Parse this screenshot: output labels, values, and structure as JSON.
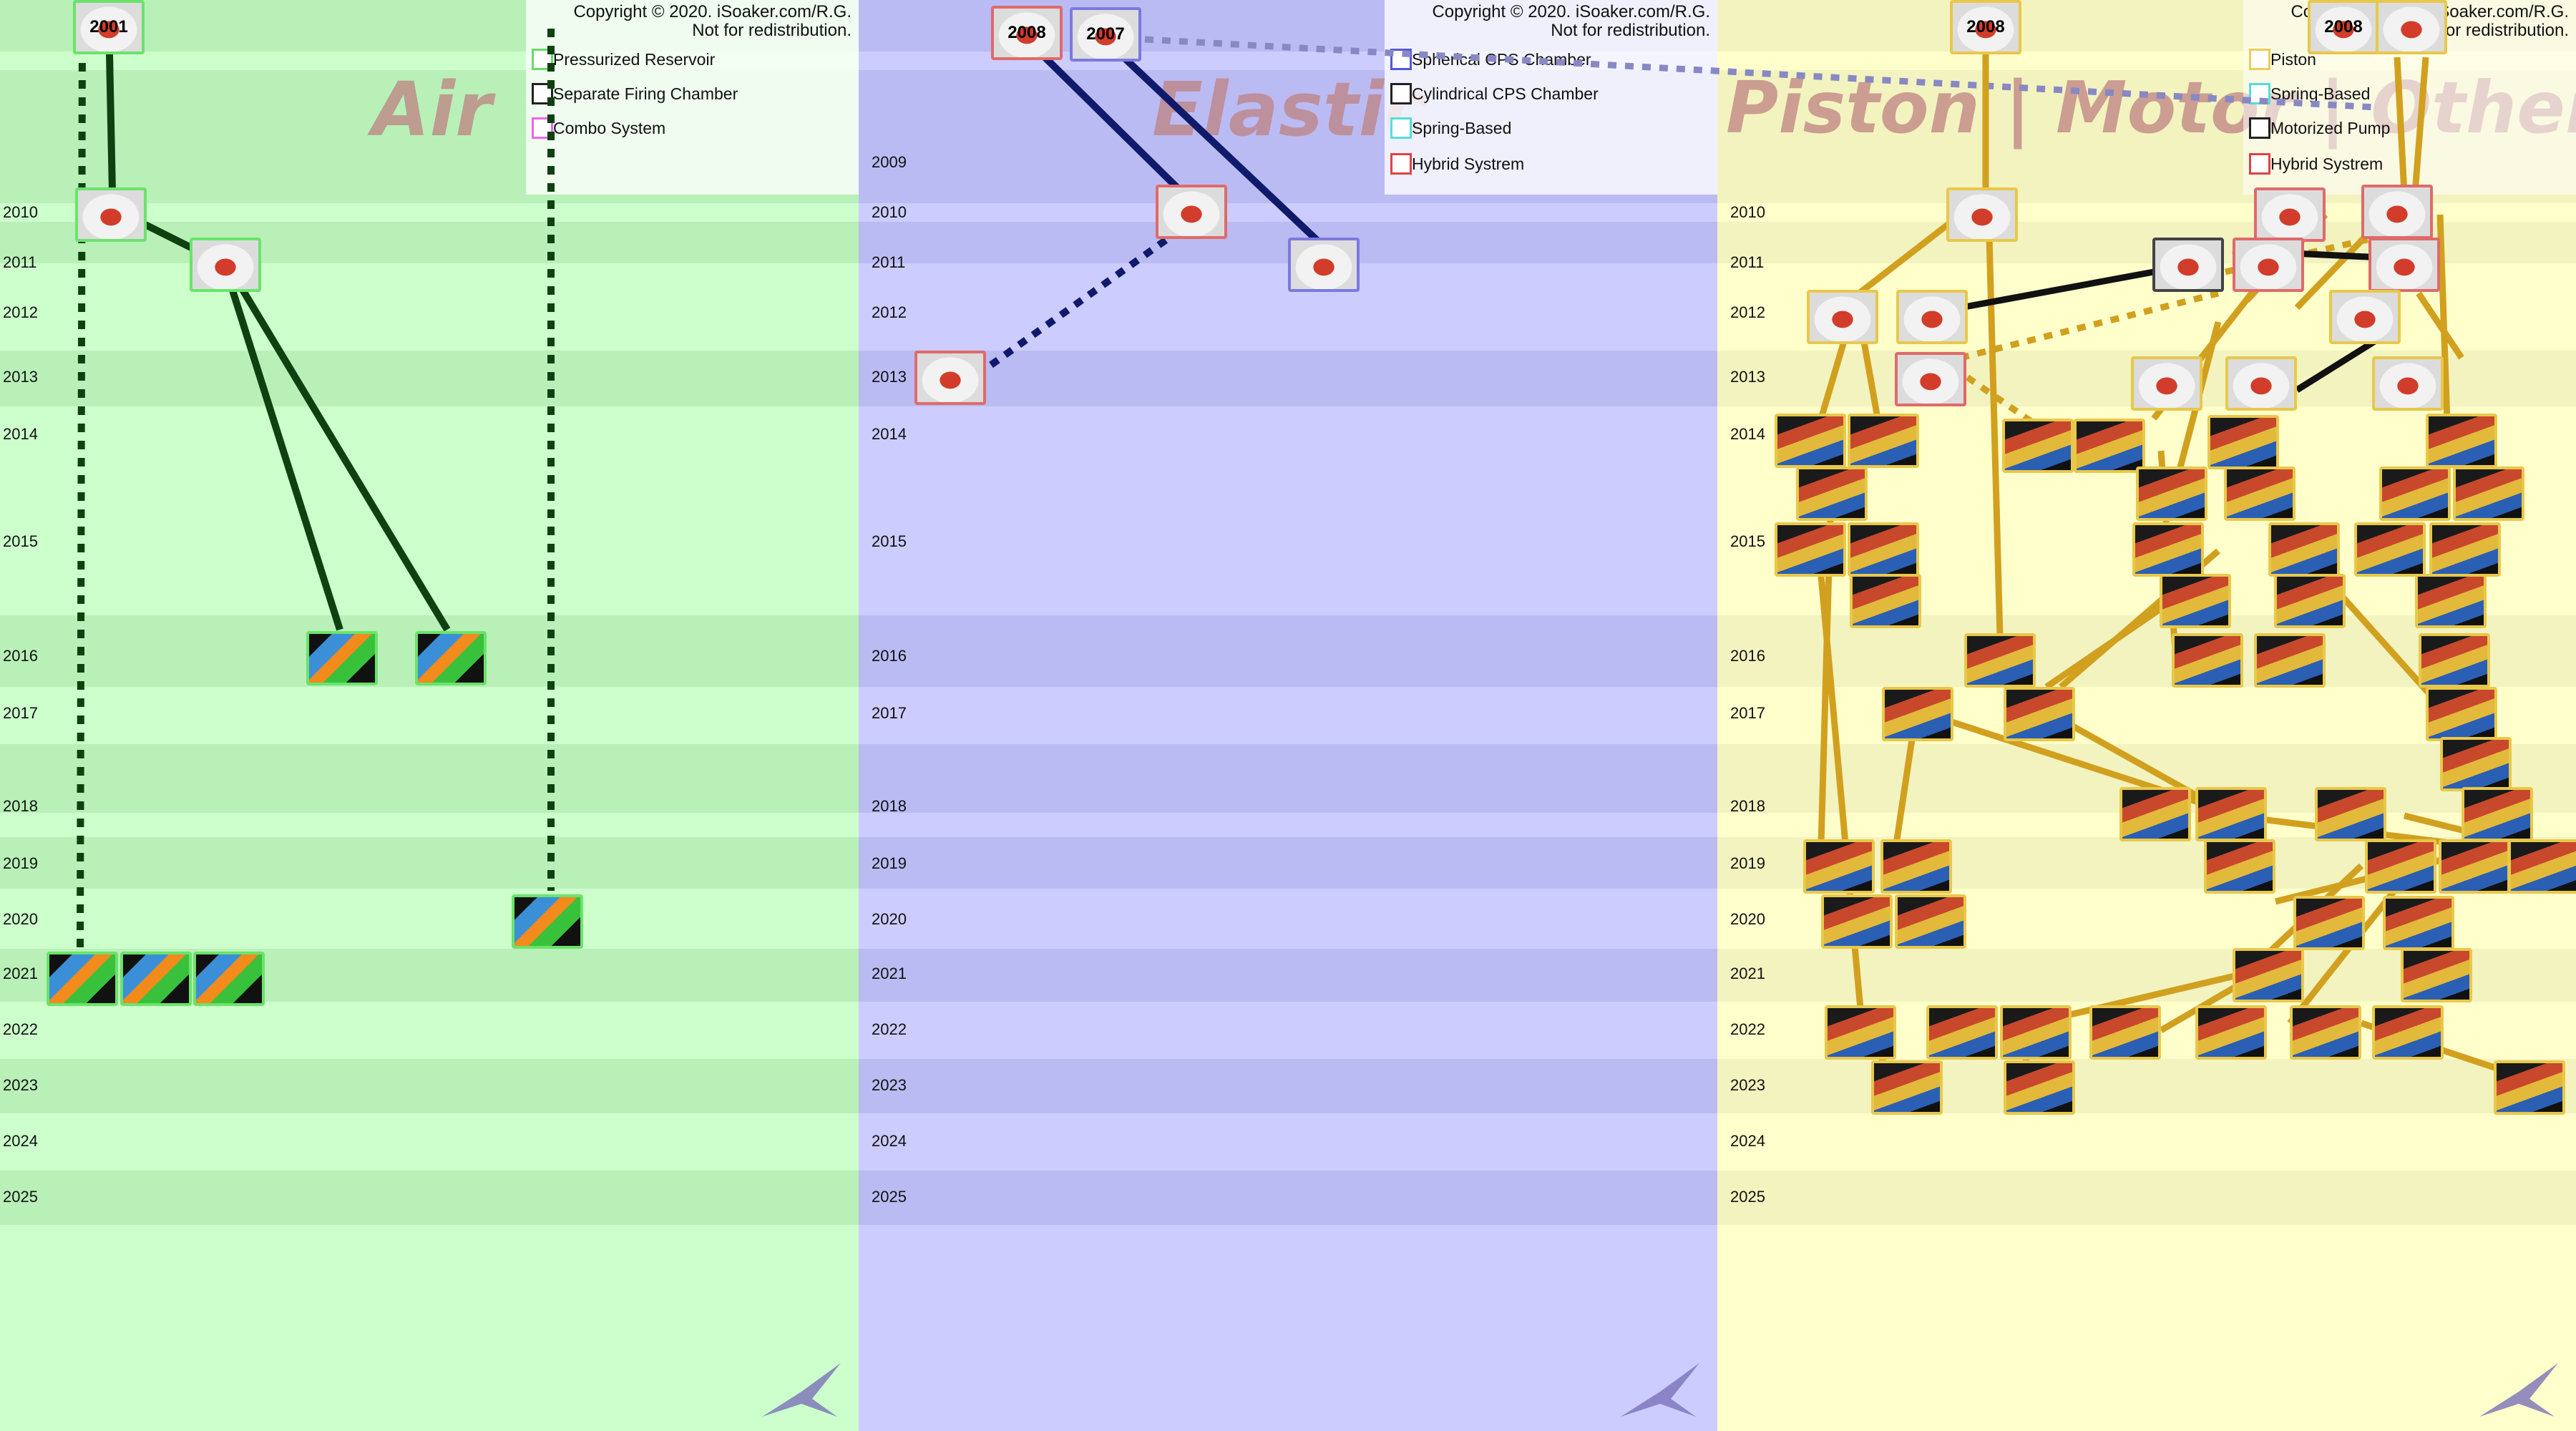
{
  "panels": {
    "air": {
      "title": "Air",
      "bg": "#ccffcc",
      "band": "#b8f0b8",
      "copyright": [
        "Copyright © 2020. iSoaker.com/R.G.",
        "Not for redistribution."
      ],
      "legend": [
        {
          "label": "Pressurized Reservoir",
          "color": "#66dd66"
        },
        {
          "label": "Separate Firing Chamber",
          "color": "#222222"
        },
        {
          "label": "Combo System",
          "color": "#ee66ee"
        }
      ]
    },
    "elastic": {
      "title": "Elastic",
      "bg": "#ccccff",
      "band": "#bbbbf4",
      "copyright": [
        "Copyright © 2020. iSoaker.com/R.G.",
        "Not for redistribution."
      ],
      "legend": [
        {
          "label": "Spherical CPS Chamber",
          "color": "#5555dd"
        },
        {
          "label": "Cylindrical CPS Chamber",
          "color": "#222222"
        },
        {
          "label": "Spring-Based",
          "color": "#55dddd"
        },
        {
          "label": "Hybrid Systrem",
          "color": "#dd4444"
        }
      ]
    },
    "piston": {
      "title": "Piston | Motor | Other",
      "bg": "#ffffcc",
      "band": "#f3f3c0",
      "copyright": [
        "Copyright © 2020. iSoaker.com/R.G.",
        "Not for redistribution."
      ],
      "legend": [
        {
          "label": "Piston",
          "color": "#eecc55"
        },
        {
          "label": "Spring-Based",
          "color": "#55dddd"
        },
        {
          "label": "Motorized Pump",
          "color": "#222222"
        },
        {
          "label": "Hybrid Systrem",
          "color": "#dd4444"
        }
      ]
    }
  },
  "years": {
    "air": [
      "2010",
      "2011",
      "2012",
      "2013",
      "2014",
      "2015",
      "2016",
      "2017",
      "2018",
      "2019",
      "2020",
      "2021",
      "2022",
      "2023",
      "2024",
      "2025"
    ],
    "elastic": [
      "2009",
      "2010",
      "2011",
      "2012",
      "2013",
      "2014",
      "2015",
      "2016",
      "2017",
      "2018",
      "2019",
      "2020",
      "2021",
      "2022",
      "2023",
      "2024",
      "2025"
    ],
    "piston": [
      "2010",
      "2011",
      "2012",
      "2013",
      "2014",
      "2015",
      "2016",
      "2017",
      "2018",
      "2019",
      "2020",
      "2021",
      "2022",
      "2023",
      "2024",
      "2025"
    ]
  },
  "thumb_labels": {
    "air_first": "2001",
    "elastic_first": "2008",
    "elastic_second": "2007",
    "piston_first": "2008",
    "piston_right": "2008"
  },
  "colors": {
    "air_line": "#0e4010",
    "elastic_line": "#101a6a",
    "piston_line": "#d1a01e",
    "motor_line": "#111111"
  }
}
